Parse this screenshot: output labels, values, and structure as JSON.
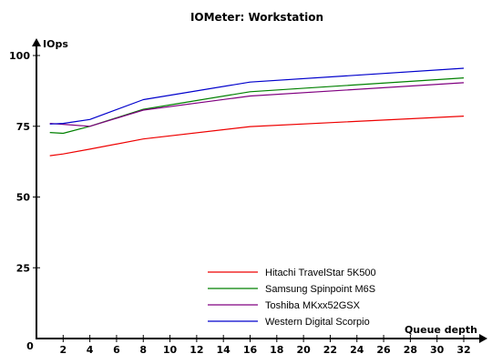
{
  "chart_data": {
    "type": "line",
    "title": "IOMeter: Workstation",
    "xlabel": "Queue depth",
    "ylabel": "IOps",
    "xlim": [
      0,
      32
    ],
    "ylim": [
      0,
      100
    ],
    "x_ticks": [
      2,
      4,
      6,
      8,
      10,
      12,
      14,
      16,
      18,
      20,
      22,
      24,
      26,
      28,
      30,
      32
    ],
    "y_ticks": [
      25,
      50,
      75,
      100
    ],
    "origin_label": "0",
    "grid": false,
    "legend_position": "bottom-right",
    "x": [
      1,
      2,
      4,
      8,
      16,
      32
    ],
    "series": [
      {
        "name": "Hitachi TravelStar 5K500",
        "color": "#ee0000",
        "values": [
          64.6,
          65.2,
          66.9,
          70.5,
          74.9,
          78.6
        ]
      },
      {
        "name": "Samsung Spinpoint M6S",
        "color": "#008000",
        "values": [
          72.8,
          72.5,
          75.0,
          81.0,
          87.2,
          92.1
        ]
      },
      {
        "name": "Toshiba MKxx52GSX",
        "color": "#800080",
        "values": [
          76.0,
          75.7,
          75.0,
          80.7,
          85.7,
          90.4
        ]
      },
      {
        "name": "Western Digital Scorpio",
        "color": "#0000cc",
        "values": [
          75.8,
          76.0,
          77.4,
          84.4,
          90.6,
          95.5
        ]
      }
    ]
  }
}
